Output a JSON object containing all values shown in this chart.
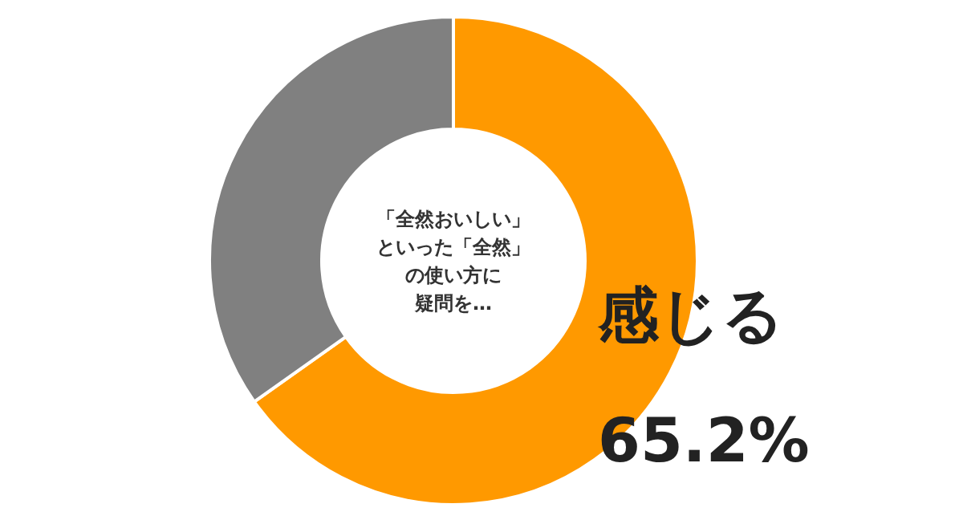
{
  "chart_data": {
    "type": "donut",
    "title": "「全然おいしい」といった「全然」の使い方に疑問を…",
    "categories": [
      "感じる",
      null
    ],
    "values": [
      65.2,
      34.8
    ],
    "colors": [
      "#ff9900",
      "#808080"
    ],
    "value_labels": [
      "65.2%",
      null
    ]
  }
}
